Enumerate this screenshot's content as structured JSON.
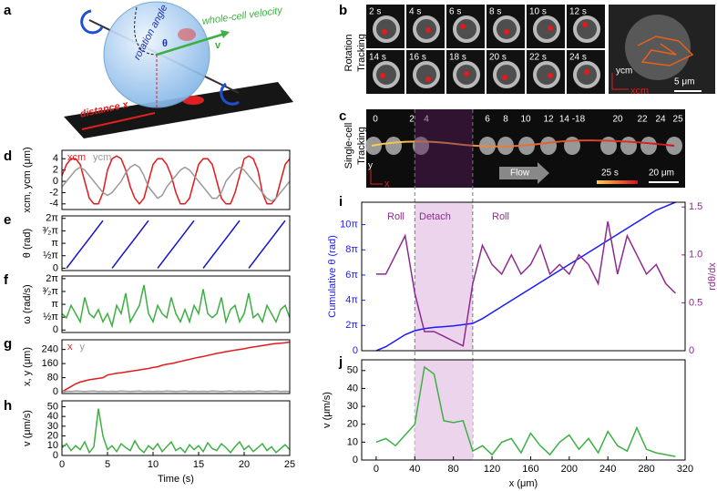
{
  "panel_labels": [
    "a",
    "b",
    "c",
    "d",
    "e",
    "f",
    "g",
    "h",
    "i",
    "j"
  ],
  "illustration": {
    "rotation": "rotation angle",
    "theta": "θ",
    "velocity": "whole-cell velocity",
    "v": "v",
    "distance": "distance x"
  },
  "rotation_tracking": {
    "label": [
      "Rotation",
      "Tracking"
    ],
    "times": [
      "2 s",
      "4 s",
      "6 s",
      "8 s",
      "10 s",
      "12 s",
      "14 s",
      "16 s",
      "18 s",
      "20 s",
      "22 s",
      "24 s"
    ],
    "scale": "5 μm",
    "axes": [
      "ycm",
      "xcm"
    ]
  },
  "single_cell_tracking": {
    "label": [
      "Single-cell",
      "Tracking"
    ],
    "times": [
      "0",
      "2",
      "4",
      "6",
      "8",
      "10",
      "12",
      "14 -18",
      "20",
      "22",
      "24",
      "25 s"
    ],
    "flow": "Flow",
    "colorbar": "25 s",
    "scale": "20 μm",
    "axes": [
      "y",
      "x"
    ]
  },
  "chart_data": [
    {
      "type": "line",
      "ylabel": "xcm, ycm (μm)",
      "legend": "upper left",
      "x": [
        0,
        0.5,
        1,
        1.5,
        2,
        2.5,
        3,
        3.5,
        4,
        4.5,
        5,
        5.5,
        6,
        6.5,
        7,
        7.5,
        8,
        8.5,
        9,
        9.5,
        10,
        10.5,
        11,
        11.5,
        12,
        12.5,
        13,
        13.5,
        14,
        14.5,
        15,
        15.5,
        16,
        16.5,
        17,
        17.5,
        18,
        18.5,
        19,
        19.5,
        20,
        20.5,
        21,
        21.5,
        22,
        22.5,
        23,
        23.5,
        24,
        24.5,
        25
      ],
      "xlim": [
        0,
        25
      ],
      "ylim": [
        -5,
        5.5
      ],
      "yticks": [
        -4,
        -2,
        0,
        2,
        4
      ],
      "series": [
        {
          "name": "xcm",
          "color": "#e31a1c",
          "values": [
            1,
            3,
            4,
            4,
            3,
            0,
            -3,
            -4,
            -4,
            -2,
            2,
            4,
            4.5,
            4,
            2,
            -1,
            -3,
            -4,
            -3,
            0,
            3,
            4,
            4,
            3,
            1,
            -2,
            -4,
            -4,
            -3,
            0,
            3,
            4,
            4,
            3,
            0,
            -3,
            -4,
            -4,
            -2,
            1,
            4,
            4.5,
            4,
            2,
            -2,
            -4,
            -4,
            -3,
            0,
            3,
            4
          ]
        },
        {
          "name": "ycm",
          "color": "#999999",
          "values": [
            -1,
            0,
            1,
            2,
            2.5,
            2,
            1,
            0,
            -1,
            -2,
            -2.5,
            -2,
            -1,
            0,
            1.5,
            2.5,
            3,
            2.5,
            1,
            -1,
            -2,
            -3,
            -2.5,
            -1,
            0,
            1,
            2,
            2.5,
            2,
            1,
            0,
            -1,
            -2,
            -3,
            -3,
            -2,
            0,
            1,
            2,
            2.5,
            2,
            1,
            0,
            -1,
            -2,
            -3,
            -3.5,
            -3,
            -2,
            -1,
            0
          ]
        }
      ]
    },
    {
      "type": "line",
      "ylabel": "θ (rad)",
      "x": [
        0,
        0.5,
        1,
        1.5,
        2,
        2.5,
        3,
        3.5,
        4,
        4.5,
        5,
        5.5,
        6,
        6.5,
        7,
        7.5,
        8,
        8.5,
        9,
        9.5,
        10,
        10.5,
        11,
        11.5,
        12,
        12.5,
        13,
        13.5,
        14,
        14.5,
        15,
        15.5,
        16,
        16.5,
        17,
        17.5,
        18,
        18.5,
        19,
        19.5,
        20,
        20.5,
        21,
        21.5,
        22,
        22.5,
        23,
        23.5,
        24,
        24.5,
        25
      ],
      "xlim": [
        0,
        25
      ],
      "ylim": [
        -0.3,
        6.6
      ],
      "yticks": [
        0,
        {
          "value": 1.5708,
          "label": "½π"
        },
        {
          "value": 3.1416,
          "label": "π"
        },
        {
          "value": 4.7124,
          "label": "³⁄₂π"
        },
        {
          "value": 6.2832,
          "label": "2π"
        }
      ],
      "series": [
        {
          "color": "#1010d0",
          "values": [
            null,
            0,
            0.75,
            1.5,
            2.25,
            3,
            3.75,
            4.5,
            5.25,
            6,
            null,
            0,
            0.75,
            1.5,
            2.25,
            3,
            3.75,
            4.5,
            5.25,
            6,
            null,
            0,
            0.75,
            1.5,
            2.25,
            3,
            3.75,
            4.5,
            5.25,
            6,
            null,
            0,
            0.75,
            1.5,
            2.25,
            3,
            3.75,
            4.5,
            5.25,
            6,
            null,
            0,
            0.75,
            1.5,
            2.25,
            3,
            3.75,
            4.5,
            5.25,
            6,
            null
          ]
        }
      ]
    },
    {
      "type": "line",
      "ylabel": "ω (rad/s)",
      "x": [
        0,
        0.5,
        1,
        1.5,
        2,
        2.5,
        3,
        3.5,
        4,
        4.5,
        5,
        5.5,
        6,
        6.5,
        7,
        7.5,
        8,
        8.5,
        9,
        9.5,
        10,
        10.5,
        11,
        11.5,
        12,
        12.5,
        13,
        13.5,
        14,
        14.5,
        15,
        15.5,
        16,
        16.5,
        17,
        17.5,
        18,
        18.5,
        19,
        19.5,
        20,
        20.5,
        21,
        21.5,
        22,
        22.5,
        23,
        23.5,
        24,
        24.5,
        25
      ],
      "xlim": [
        0,
        25
      ],
      "ylim": [
        -0.3,
        6.6
      ],
      "yticks": [
        0,
        {
          "value": 1.5708,
          "label": "½π"
        },
        {
          "value": 3.1416,
          "label": "π"
        },
        {
          "value": 4.7124,
          "label": "³⁄₂π"
        },
        {
          "value": 6.2832,
          "label": "2π"
        }
      ],
      "series": [
        {
          "color": "#3cb043",
          "values": [
            2,
            1.5,
            3,
            2,
            1,
            4,
            2,
            1.5,
            2.5,
            1,
            2,
            0.5,
            3,
            2,
            4.5,
            1,
            2,
            3,
            5.5,
            2,
            1,
            3,
            2,
            1.5,
            4,
            2,
            1,
            2.5,
            1,
            3,
            2,
            5,
            2,
            1.5,
            2,
            4,
            1,
            2.5,
            3,
            1,
            2,
            4.5,
            1.5,
            2,
            1,
            3,
            2,
            1,
            2.5,
            3,
            1.5
          ]
        }
      ]
    },
    {
      "type": "line",
      "ylabel": "x, y (μm)",
      "legend": "upper left",
      "x": [
        0,
        0.5,
        1,
        1.5,
        2,
        2.5,
        3,
        3.5,
        4,
        4.5,
        5,
        5.5,
        6,
        6.5,
        7,
        7.5,
        8,
        8.5,
        9,
        9.5,
        10,
        10.5,
        11,
        11.5,
        12,
        12.5,
        13,
        13.5,
        14,
        14.5,
        15,
        15.5,
        16,
        16.5,
        17,
        17.5,
        18,
        18.5,
        19,
        19.5,
        20,
        20.5,
        21,
        21.5,
        22,
        22.5,
        23,
        23.5,
        24,
        24.5,
        25
      ],
      "xlim": [
        0,
        25
      ],
      "ylim": [
        -10,
        295
      ],
      "yticks": [
        0,
        80,
        160,
        240
      ],
      "series": [
        {
          "name": "x",
          "color": "#e31a1c",
          "values": [
            0,
            15,
            30,
            45,
            55,
            62,
            68,
            72,
            76,
            80,
            95,
            100,
            105,
            108,
            112,
            116,
            120,
            124,
            128,
            132,
            138,
            142,
            150,
            156,
            160,
            166,
            172,
            178,
            184,
            190,
            196,
            200,
            206,
            212,
            218,
            222,
            228,
            232,
            236,
            240,
            244,
            250,
            254,
            258,
            262,
            266,
            270,
            274,
            276,
            278,
            282
          ]
        },
        {
          "name": "y",
          "color": "#999999",
          "values": [
            2,
            3,
            2,
            4,
            3,
            2,
            3,
            4,
            2,
            3,
            2,
            3,
            2,
            4,
            3,
            2,
            3,
            4,
            2,
            3,
            2,
            3,
            2,
            4,
            3,
            2,
            3,
            4,
            2,
            3,
            2,
            3,
            2,
            4,
            3,
            2,
            3,
            4,
            2,
            3,
            2,
            3,
            2,
            4,
            3,
            2,
            3,
            4,
            2,
            3,
            2
          ]
        }
      ]
    },
    {
      "type": "line",
      "ylabel": "v (μm/s)",
      "xlabel": "Time (s)",
      "x": [
        0,
        0.5,
        1,
        1.5,
        2,
        2.5,
        3,
        3.5,
        4,
        4.5,
        5,
        5.5,
        6,
        6.5,
        7,
        7.5,
        8,
        8.5,
        9,
        9.5,
        10,
        10.5,
        11,
        11.5,
        12,
        12.5,
        13,
        13.5,
        14,
        14.5,
        15,
        15.5,
        16,
        16.5,
        17,
        17.5,
        18,
        18.5,
        19,
        19.5,
        20,
        20.5,
        21,
        21.5,
        22,
        22.5,
        23,
        23.5,
        24,
        24.5,
        25
      ],
      "xlim": [
        0,
        25
      ],
      "ylim": [
        0,
        56
      ],
      "yticks": [
        0,
        10,
        20,
        30,
        40,
        50
      ],
      "xticks": [
        0,
        5,
        10,
        15,
        20,
        25
      ],
      "series": [
        {
          "color": "#3cb043",
          "values": [
            8,
            12,
            5,
            10,
            6,
            14,
            3,
            9,
            48,
            20,
            6,
            10,
            4,
            12,
            8,
            5,
            15,
            7,
            3,
            10,
            6,
            12,
            4,
            9,
            14,
            5,
            8,
            3,
            11,
            6,
            10,
            4,
            13,
            7,
            5,
            12,
            8,
            3,
            9,
            14,
            6,
            10,
            4,
            8,
            12,
            5,
            9,
            3,
            7,
            11,
            6
          ]
        }
      ]
    },
    {
      "type": "line",
      "ylabel": "Cumulative θ (rad)",
      "y2label": "rdθ/dx",
      "annotations": [
        "Roll",
        "Detach",
        "Roll"
      ],
      "x": [
        0,
        10,
        20,
        30,
        40,
        50,
        60,
        70,
        80,
        90,
        100,
        110,
        120,
        130,
        140,
        150,
        160,
        170,
        180,
        190,
        200,
        210,
        220,
        230,
        240,
        250,
        260,
        270,
        280,
        290,
        300,
        310
      ],
      "xlim": [
        -15,
        320
      ],
      "shade": [
        40,
        100
      ],
      "ylim": [
        0,
        37
      ],
      "yticks": [
        0,
        {
          "value": 6.2832,
          "label": "2π"
        },
        {
          "value": 12.5664,
          "label": "4π"
        },
        {
          "value": 18.8496,
          "label": "6π"
        },
        {
          "value": 25.1327,
          "label": "8π"
        },
        {
          "value": 31.4159,
          "label": "10π"
        }
      ],
      "y2lim": [
        0,
        1.55
      ],
      "y2ticks": [
        0,
        0.5,
        {
          "value": 1,
          "label": "1.0"
        },
        1.5
      ],
      "series": [
        {
          "color": "#1a1aff",
          "values": [
            0,
            1,
            2.5,
            4,
            5,
            5.5,
            5.8,
            6,
            6.2,
            6.5,
            6.8,
            8,
            9.5,
            11,
            12.5,
            14,
            15.5,
            17,
            18.5,
            20,
            21.5,
            23,
            24.5,
            26,
            27.5,
            29,
            30.5,
            32,
            33.5,
            35,
            36,
            37
          ]
        },
        {
          "color": "#8e2a8e",
          "axis": "y2",
          "values": [
            0.8,
            0.8,
            1.0,
            1.2,
            0.6,
            0.2,
            0.2,
            0.15,
            0.1,
            0.05,
            0.7,
            1.1,
            0.9,
            0.8,
            1.0,
            0.8,
            0.9,
            1.1,
            0.8,
            0.9,
            0.8,
            1.0,
            0.9,
            0.7,
            1.35,
            0.8,
            1.2,
            1.0,
            0.8,
            0.9,
            0.7,
            0.6
          ]
        }
      ]
    },
    {
      "type": "line",
      "ylabel": "v (μm/s)",
      "xlabel": "x (μm)",
      "x": [
        0,
        10,
        20,
        30,
        40,
        50,
        60,
        70,
        80,
        90,
        100,
        110,
        120,
        130,
        140,
        150,
        160,
        170,
        180,
        190,
        200,
        210,
        220,
        230,
        240,
        250,
        260,
        270,
        280,
        290,
        300,
        310
      ],
      "xlim": [
        -15,
        320
      ],
      "shade": [
        40,
        100
      ],
      "ylim": [
        0,
        56
      ],
      "yticks": [
        0,
        10,
        20,
        30,
        40,
        50
      ],
      "xticks": [
        0,
        40,
        80,
        120,
        160,
        200,
        240,
        280,
        320
      ],
      "series": [
        {
          "color": "#3cb043",
          "values": [
            10,
            12,
            8,
            14,
            20,
            52,
            48,
            22,
            21,
            22,
            5,
            8,
            3,
            10,
            12,
            4,
            15,
            8,
            3,
            10,
            14,
            6,
            12,
            4,
            16,
            8,
            5,
            18,
            6,
            4,
            3,
            2
          ]
        }
      ]
    }
  ]
}
